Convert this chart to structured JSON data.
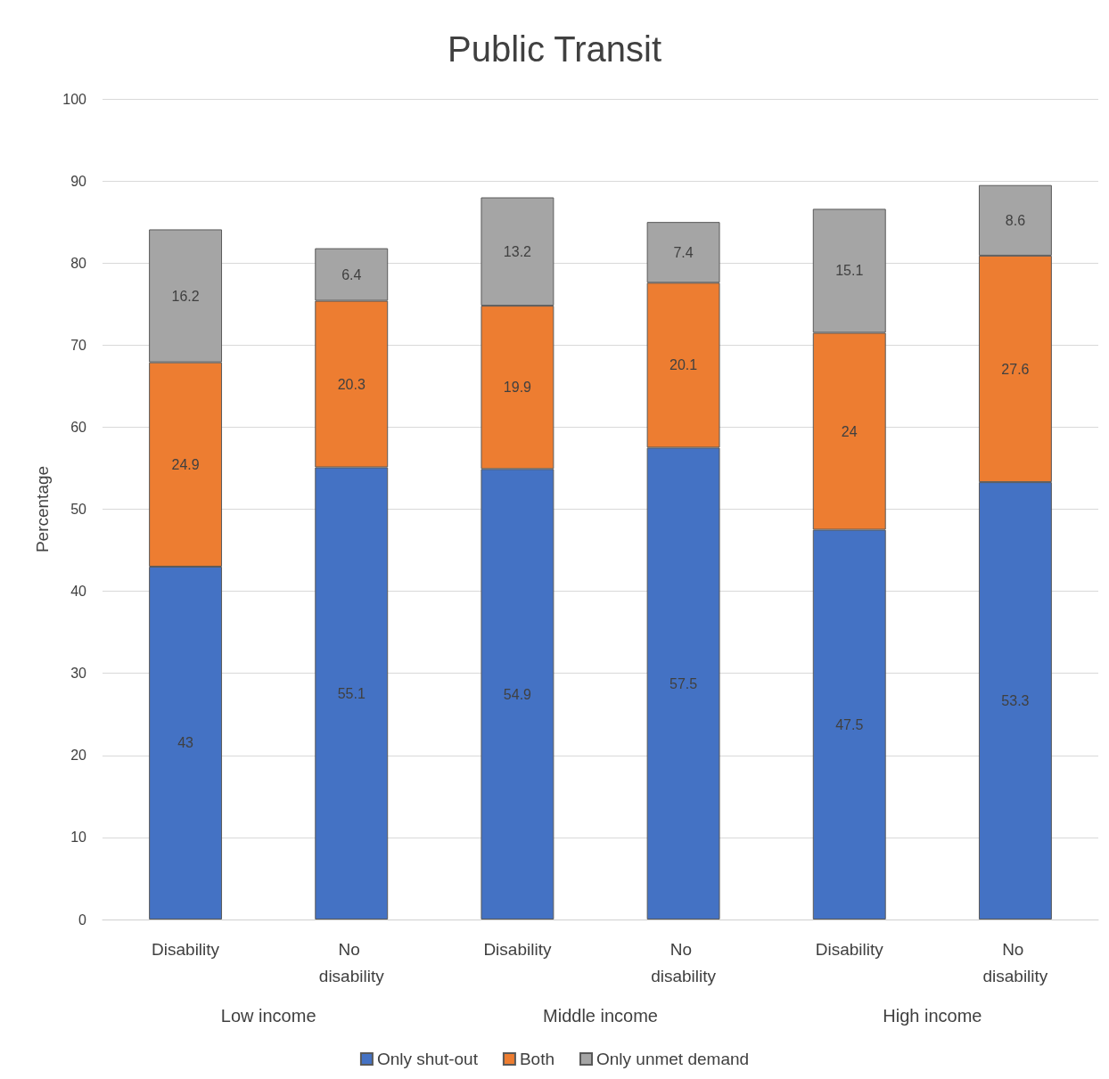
{
  "chart_data": {
    "type": "bar",
    "title": "Public Transit",
    "ylabel": "Percentage",
    "categories": [
      "Disability",
      "No disability",
      "Disability",
      "No disability",
      "Disability",
      "No disability"
    ],
    "series": [
      {
        "name": "Only shut-out",
        "color": "#4472c4",
        "values": [
          43,
          55.1,
          54.9,
          57.5,
          47.5,
          53.3
        ]
      },
      {
        "name": "Both",
        "color": "#ed7d31",
        "values": [
          24.9,
          20.3,
          19.9,
          20.1,
          24,
          27.6
        ]
      },
      {
        "name": "Only unmet demand",
        "color": "#a5a5a5",
        "values": [
          16.2,
          6.4,
          13.2,
          7.4,
          15.1,
          8.6
        ]
      }
    ],
    "annotations": [
      "Low income",
      "Middle income",
      "High income"
    ],
    "stacked": true,
    "data_labels": true,
    "ylim": [
      0,
      100
    ],
    "yticks": [
      0,
      10,
      20,
      30,
      40,
      50,
      60,
      70,
      80,
      90,
      100
    ],
    "grid": "y",
    "legend": "bottom"
  }
}
